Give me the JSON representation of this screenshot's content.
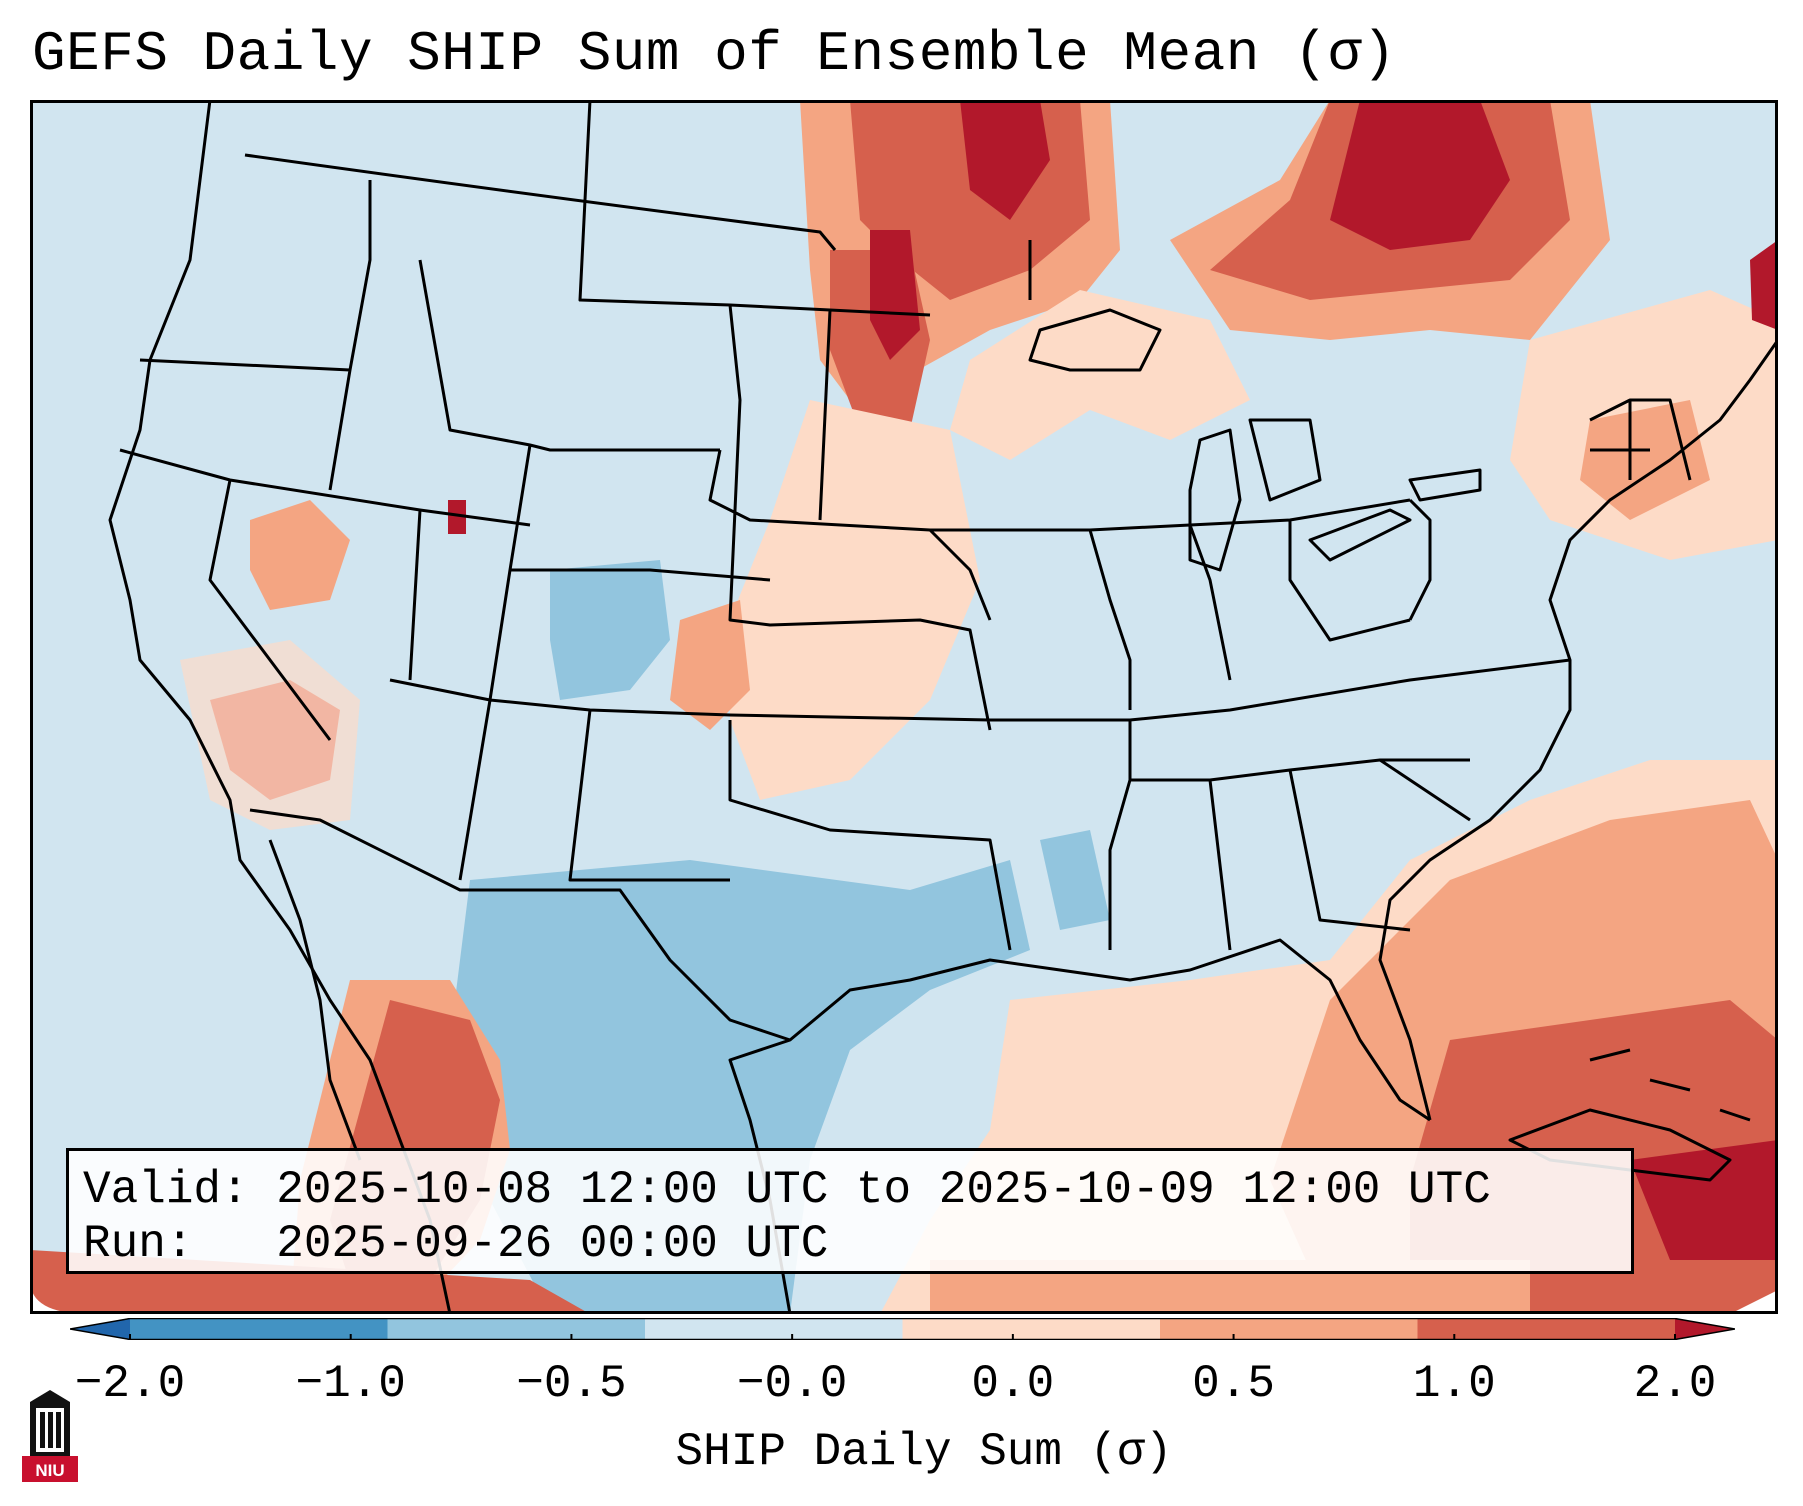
{
  "figure": {
    "title": "GEFS Daily SHIP Sum of Ensemble Mean (σ)"
  },
  "info": {
    "valid": "Valid: 2025-10-08 12:00 UTC to 2025-10-09 12:00 UTC",
    "run": "Run:   2025-09-26 00:00 UTC"
  },
  "colorbar": {
    "label": "SHIP Daily Sum (σ)",
    "ticks": [
      "−2.0",
      "−1.0",
      "−0.5",
      "−0.0",
      "0.0",
      "0.5",
      "1.0",
      "2.0"
    ],
    "colors": [
      "#2166ac",
      "#4393c3",
      "#92c5de",
      "#d1e5f0",
      "#fddbc7",
      "#f4a582",
      "#d6604d",
      "#b2182b"
    ],
    "extend": "both"
  },
  "map": {
    "region": "CONUS",
    "background_color": "#d1e5f0"
  },
  "logo": {
    "text": "NIU"
  }
}
